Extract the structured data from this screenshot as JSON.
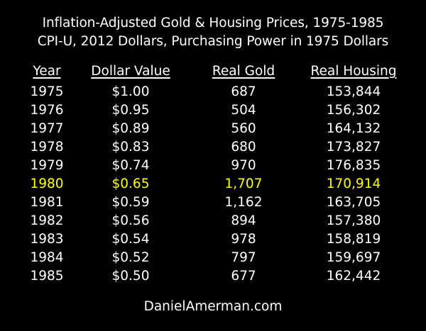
{
  "title_line1": "Inflation-Adjusted Gold & Housing Prices, 1975-1985",
  "title_line2": "CPI-U, 2012 Dollars, Purchasing Power in 1975 Dollars",
  "footer": "DanielAmerman.com",
  "colors": {
    "background": "#000000",
    "text": "#ffffff",
    "highlight": "#ffff00"
  },
  "chart_data": {
    "type": "table",
    "columns": [
      "Year",
      "Dollar Value",
      "Real Gold",
      "Real Housing"
    ],
    "highlight_year": "1980",
    "rows": [
      [
        "1975",
        "$1.00",
        "687",
        "153,844"
      ],
      [
        "1976",
        "$0.95",
        "504",
        "156,302"
      ],
      [
        "1977",
        "$0.89",
        "560",
        "164,132"
      ],
      [
        "1978",
        "$0.83",
        "680",
        "173,827"
      ],
      [
        "1979",
        "$0.74",
        "970",
        "176,835"
      ],
      [
        "1980",
        "$0.65",
        "1,707",
        "170,914"
      ],
      [
        "1981",
        "$0.59",
        "1,162",
        "163,705"
      ],
      [
        "1982",
        "$0.56",
        "894",
        "157,380"
      ],
      [
        "1983",
        "$0.54",
        "978",
        "158,819"
      ],
      [
        "1984",
        "$0.52",
        "797",
        "159,697"
      ],
      [
        "1985",
        "$0.50",
        "677",
        "162,442"
      ]
    ]
  }
}
